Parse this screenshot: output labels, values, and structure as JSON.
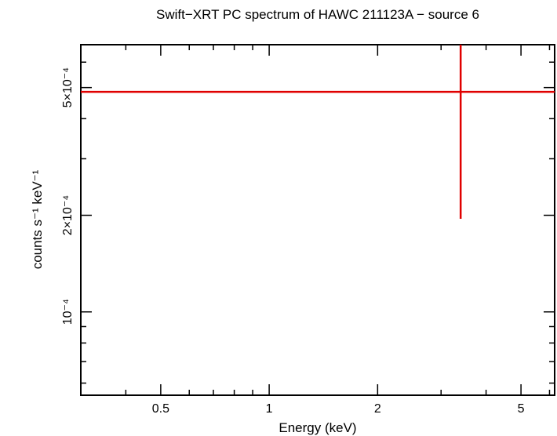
{
  "chart_data": {
    "type": "scatter",
    "title": "Swift−XRT PC spectrum of HAWC 211123A − source 6",
    "xlabel": "Energy (keV)",
    "ylabel": "counts s⁻¹ keV⁻¹",
    "x_scale": "log",
    "y_scale": "log",
    "xlim": [
      0.3,
      6.2
    ],
    "ylim": [
      5.5e-05,
      0.00068
    ],
    "x_ticks": [
      {
        "value": 0.5,
        "label": "0.5"
      },
      {
        "value": 1,
        "label": "1"
      },
      {
        "value": 2,
        "label": "2"
      },
      {
        "value": 5,
        "label": "5"
      }
    ],
    "y_ticks": [
      {
        "value": 0.0001,
        "label": "10⁻⁴"
      },
      {
        "value": 0.0002,
        "label": "2×10⁻⁴"
      },
      {
        "value": 0.0005,
        "label": "5×10⁻⁴"
      }
    ],
    "grid": false,
    "series": [
      {
        "color": "#e00000",
        "points": [
          {
            "x": 3.4,
            "x_low": 0.3,
            "x_high": 6.2,
            "y": 0.000485,
            "y_low": 0.000195,
            "y_high": 0.00068
          }
        ]
      }
    ]
  }
}
